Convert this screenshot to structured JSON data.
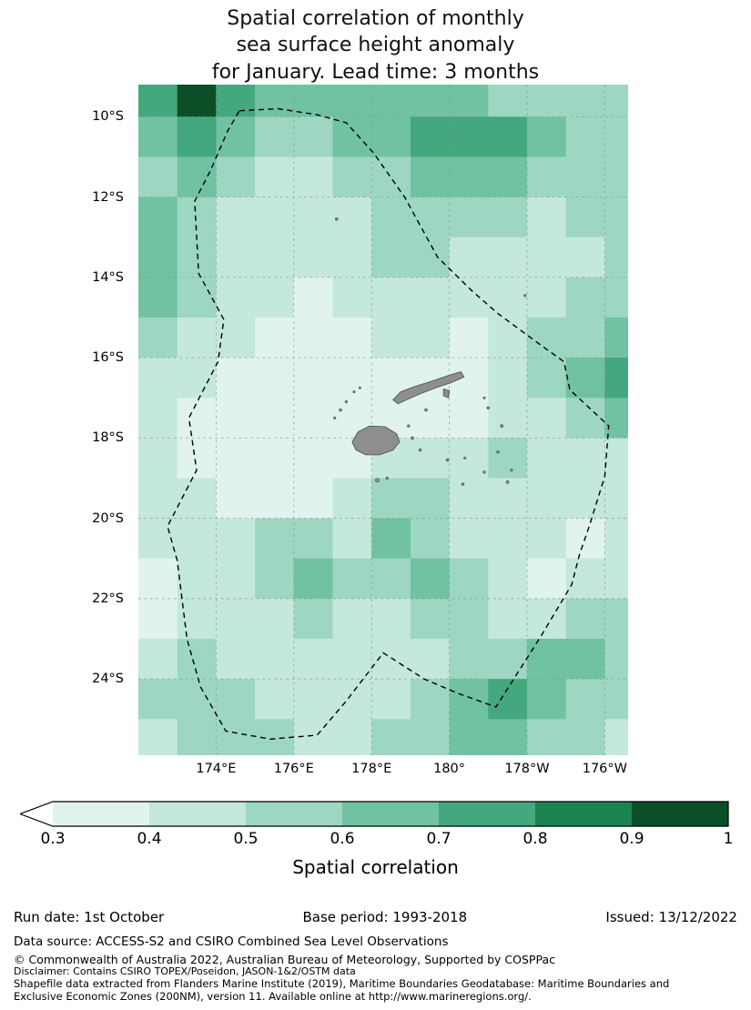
{
  "title": {
    "line1": "Spatial correlation of monthly",
    "line2": "sea surface height anomaly",
    "line3": "for January. Lead time: 3 months"
  },
  "axes": {
    "lat_ticks": [
      {
        "value": 10,
        "label": "10°S"
      },
      {
        "value": 12,
        "label": "12°S"
      },
      {
        "value": 14,
        "label": "14°S"
      },
      {
        "value": 16,
        "label": "16°S"
      },
      {
        "value": 18,
        "label": "18°S"
      },
      {
        "value": 20,
        "label": "20°S"
      },
      {
        "value": 22,
        "label": "22°S"
      },
      {
        "value": 24,
        "label": "24°S"
      }
    ],
    "lon_ticks": [
      {
        "value": 174,
        "label": "174°E"
      },
      {
        "value": 176,
        "label": "176°E"
      },
      {
        "value": 178,
        "label": "178°E"
      },
      {
        "value": 180,
        "label": "180°"
      },
      {
        "value": 182,
        "label": "178°W"
      },
      {
        "value": 184,
        "label": "176°W"
      }
    ]
  },
  "chart_data": {
    "type": "heatmap",
    "title": "Spatial correlation of monthly sea surface height anomaly for January. Lead time: 3 months",
    "extent": {
      "lon": [
        172.0,
        184.6
      ],
      "lat": [
        9.2,
        25.9
      ]
    },
    "grid": {
      "lon_start": 172.0,
      "lon_step": 1.0,
      "lat_start": 9.0,
      "lat_step": 1.0,
      "values": [
        [
          0.72,
          0.92,
          0.72,
          0.65,
          0.62,
          0.62,
          0.65,
          0.62,
          0.6,
          0.55,
          0.52,
          0.55,
          0.57
        ],
        [
          0.62,
          0.7,
          0.65,
          0.58,
          0.55,
          0.6,
          0.65,
          0.72,
          0.76,
          0.7,
          0.6,
          0.55,
          0.58
        ],
        [
          0.58,
          0.62,
          0.55,
          0.48,
          0.45,
          0.52,
          0.58,
          0.65,
          0.68,
          0.62,
          0.55,
          0.52,
          0.55
        ],
        [
          0.62,
          0.55,
          0.45,
          0.42,
          0.42,
          0.45,
          0.52,
          0.58,
          0.55,
          0.52,
          0.48,
          0.5,
          0.55
        ],
        [
          0.65,
          0.55,
          0.45,
          0.4,
          0.42,
          0.45,
          0.5,
          0.5,
          0.48,
          0.45,
          0.42,
          0.45,
          0.52
        ],
        [
          0.62,
          0.52,
          0.45,
          0.4,
          0.38,
          0.4,
          0.45,
          0.45,
          0.42,
          0.4,
          0.45,
          0.5,
          0.55
        ],
        [
          0.52,
          0.45,
          0.4,
          0.36,
          0.34,
          0.36,
          0.4,
          0.4,
          0.36,
          0.4,
          0.5,
          0.58,
          0.62
        ],
        [
          0.46,
          0.4,
          0.36,
          0.34,
          0.32,
          0.34,
          0.36,
          0.36,
          0.35,
          0.4,
          0.52,
          0.66,
          0.74
        ],
        [
          0.42,
          0.36,
          0.34,
          0.31,
          0.31,
          0.32,
          0.35,
          0.36,
          0.36,
          0.42,
          0.48,
          0.56,
          0.64
        ],
        [
          0.4,
          0.35,
          0.32,
          0.31,
          0.32,
          0.36,
          0.4,
          0.42,
          0.46,
          0.5,
          0.46,
          0.42,
          0.46
        ],
        [
          0.46,
          0.42,
          0.36,
          0.34,
          0.36,
          0.42,
          0.56,
          0.52,
          0.46,
          0.48,
          0.44,
          0.4,
          0.42
        ],
        [
          0.42,
          0.44,
          0.46,
          0.5,
          0.52,
          0.46,
          0.6,
          0.56,
          0.46,
          0.42,
          0.4,
          0.36,
          0.4
        ],
        [
          0.36,
          0.42,
          0.46,
          0.56,
          0.66,
          0.52,
          0.56,
          0.62,
          0.52,
          0.42,
          0.36,
          0.4,
          0.45
        ],
        [
          0.36,
          0.4,
          0.42,
          0.46,
          0.52,
          0.46,
          0.46,
          0.56,
          0.52,
          0.42,
          0.42,
          0.52,
          0.56
        ],
        [
          0.46,
          0.52,
          0.46,
          0.42,
          0.4,
          0.4,
          0.42,
          0.46,
          0.52,
          0.56,
          0.6,
          0.6,
          0.55
        ],
        [
          0.52,
          0.56,
          0.52,
          0.46,
          0.45,
          0.42,
          0.46,
          0.52,
          0.62,
          0.7,
          0.66,
          0.56,
          0.5
        ],
        [
          0.46,
          0.52,
          0.56,
          0.52,
          0.46,
          0.46,
          0.52,
          0.56,
          0.62,
          0.62,
          0.56,
          0.5,
          0.46
        ]
      ]
    },
    "colorbar": {
      "label": "Spatial correlation",
      "ticks": [
        "0.3",
        "0.4",
        "0.5",
        "0.6",
        "0.7",
        "0.8",
        "0.9",
        "1"
      ],
      "colors": [
        "#e1f3ee",
        "#c4e8db",
        "#9dd7c2",
        "#70c2a3",
        "#43a87d",
        "#1b8450",
        "#0a4f27"
      ],
      "under_arrow_color": "#ffffff"
    },
    "gridline_color": "#8f8f8f",
    "eez_boundary": [
      [
        174.6,
        9.85
      ],
      [
        175.6,
        9.8
      ],
      [
        176.6,
        9.95
      ],
      [
        177.35,
        10.15
      ],
      [
        178.05,
        10.9
      ],
      [
        178.85,
        12.0
      ],
      [
        179.7,
        13.5
      ],
      [
        180.6,
        14.35
      ],
      [
        181.25,
        14.9
      ],
      [
        182.3,
        15.65
      ],
      [
        182.95,
        16.1
      ],
      [
        183.1,
        16.8
      ],
      [
        184.1,
        17.7
      ],
      [
        184.0,
        18.95
      ],
      [
        183.6,
        20.2
      ],
      [
        183.35,
        20.9
      ],
      [
        183.15,
        21.65
      ],
      [
        182.35,
        22.95
      ],
      [
        181.2,
        24.7
      ],
      [
        180.2,
        24.35
      ],
      [
        179.35,
        24.0
      ],
      [
        178.3,
        23.35
      ],
      [
        177.35,
        24.55
      ],
      [
        176.6,
        25.4
      ],
      [
        175.4,
        25.5
      ],
      [
        174.25,
        25.3
      ],
      [
        173.6,
        24.2
      ],
      [
        173.25,
        23.0
      ],
      [
        173.0,
        21.05
      ],
      [
        172.75,
        20.2
      ],
      [
        173.5,
        18.8
      ],
      [
        173.3,
        17.5
      ],
      [
        174.05,
        16.1
      ],
      [
        174.2,
        15.05
      ],
      [
        173.55,
        13.9
      ],
      [
        173.45,
        12.1
      ],
      [
        173.85,
        11.35
      ],
      [
        174.3,
        10.35
      ]
    ],
    "islands": {
      "color": "#8e8e8e",
      "edge": "#4a4a4a",
      "polygons": [
        [
          [
            177.5,
            18.1
          ],
          [
            177.65,
            17.85
          ],
          [
            177.95,
            17.7
          ],
          [
            178.35,
            17.72
          ],
          [
            178.65,
            17.9
          ],
          [
            178.72,
            18.1
          ],
          [
            178.55,
            18.3
          ],
          [
            178.2,
            18.42
          ],
          [
            177.85,
            18.42
          ],
          [
            177.6,
            18.3
          ]
        ],
        [
          [
            178.55,
            17.05
          ],
          [
            178.75,
            16.85
          ],
          [
            179.1,
            16.72
          ],
          [
            179.5,
            16.6
          ],
          [
            179.95,
            16.45
          ],
          [
            180.3,
            16.35
          ],
          [
            180.38,
            16.48
          ],
          [
            180.05,
            16.62
          ],
          [
            179.65,
            16.75
          ],
          [
            179.25,
            16.9
          ],
          [
            178.9,
            17.05
          ],
          [
            178.68,
            17.15
          ]
        ],
        [
          [
            179.85,
            16.78
          ],
          [
            180.0,
            16.82
          ],
          [
            179.98,
            17.0
          ],
          [
            179.85,
            16.95
          ]
        ]
      ],
      "dots": [
        [
          177.1,
          12.55,
          1.5
        ],
        [
          181.95,
          14.45,
          1.3
        ],
        [
          177.2,
          17.3,
          1.5
        ],
        [
          177.35,
          17.1,
          1.3
        ],
        [
          177.05,
          17.5,
          1.3
        ],
        [
          177.55,
          16.85,
          1.2
        ],
        [
          177.7,
          16.75,
          1.1
        ],
        [
          178.15,
          19.05,
          2.2
        ],
        [
          178.4,
          19.0,
          1.3
        ],
        [
          179.05,
          18.0,
          1.5
        ],
        [
          179.25,
          18.3,
          1.4
        ],
        [
          178.95,
          17.7,
          1.3
        ],
        [
          179.4,
          17.3,
          1.5
        ],
        [
          179.95,
          18.55,
          1.5
        ],
        [
          180.35,
          19.15,
          1.4
        ],
        [
          181.0,
          17.25,
          1.4
        ],
        [
          181.35,
          17.7,
          1.5
        ],
        [
          181.25,
          18.35,
          1.4
        ],
        [
          181.5,
          19.1,
          1.6
        ],
        [
          180.9,
          18.85,
          1.3
        ],
        [
          180.4,
          18.5,
          1.2
        ],
        [
          180.9,
          17.0,
          1.2
        ],
        [
          181.6,
          18.8,
          1.2
        ]
      ]
    }
  },
  "footer": {
    "run_date": "Run date: 1st October",
    "base_period": "Base period: 1993-2018",
    "issued": "Issued: 13/12/2022",
    "data_source": "Data source: ACCESS-S2 and CSIRO Combined Sea Level Observations",
    "copyright": "© Commonwealth of Australia 2022, Australian Bureau of Meteorology, Supported by COSPPac",
    "disclaimer": "Disclaimer: Contains CSIRO TOPEX/Poseidon, JASON-1&2/OSTM data",
    "shapefile_line1": "Shapefile data extracted from Flanders Marine Institute (2019), Maritime Boundaries Geodatabase: Maritime Boundaries and",
    "shapefile_line2": "Exclusive Economic Zones (200NM), version 11. Available online at http://www.marineregions.org/."
  }
}
